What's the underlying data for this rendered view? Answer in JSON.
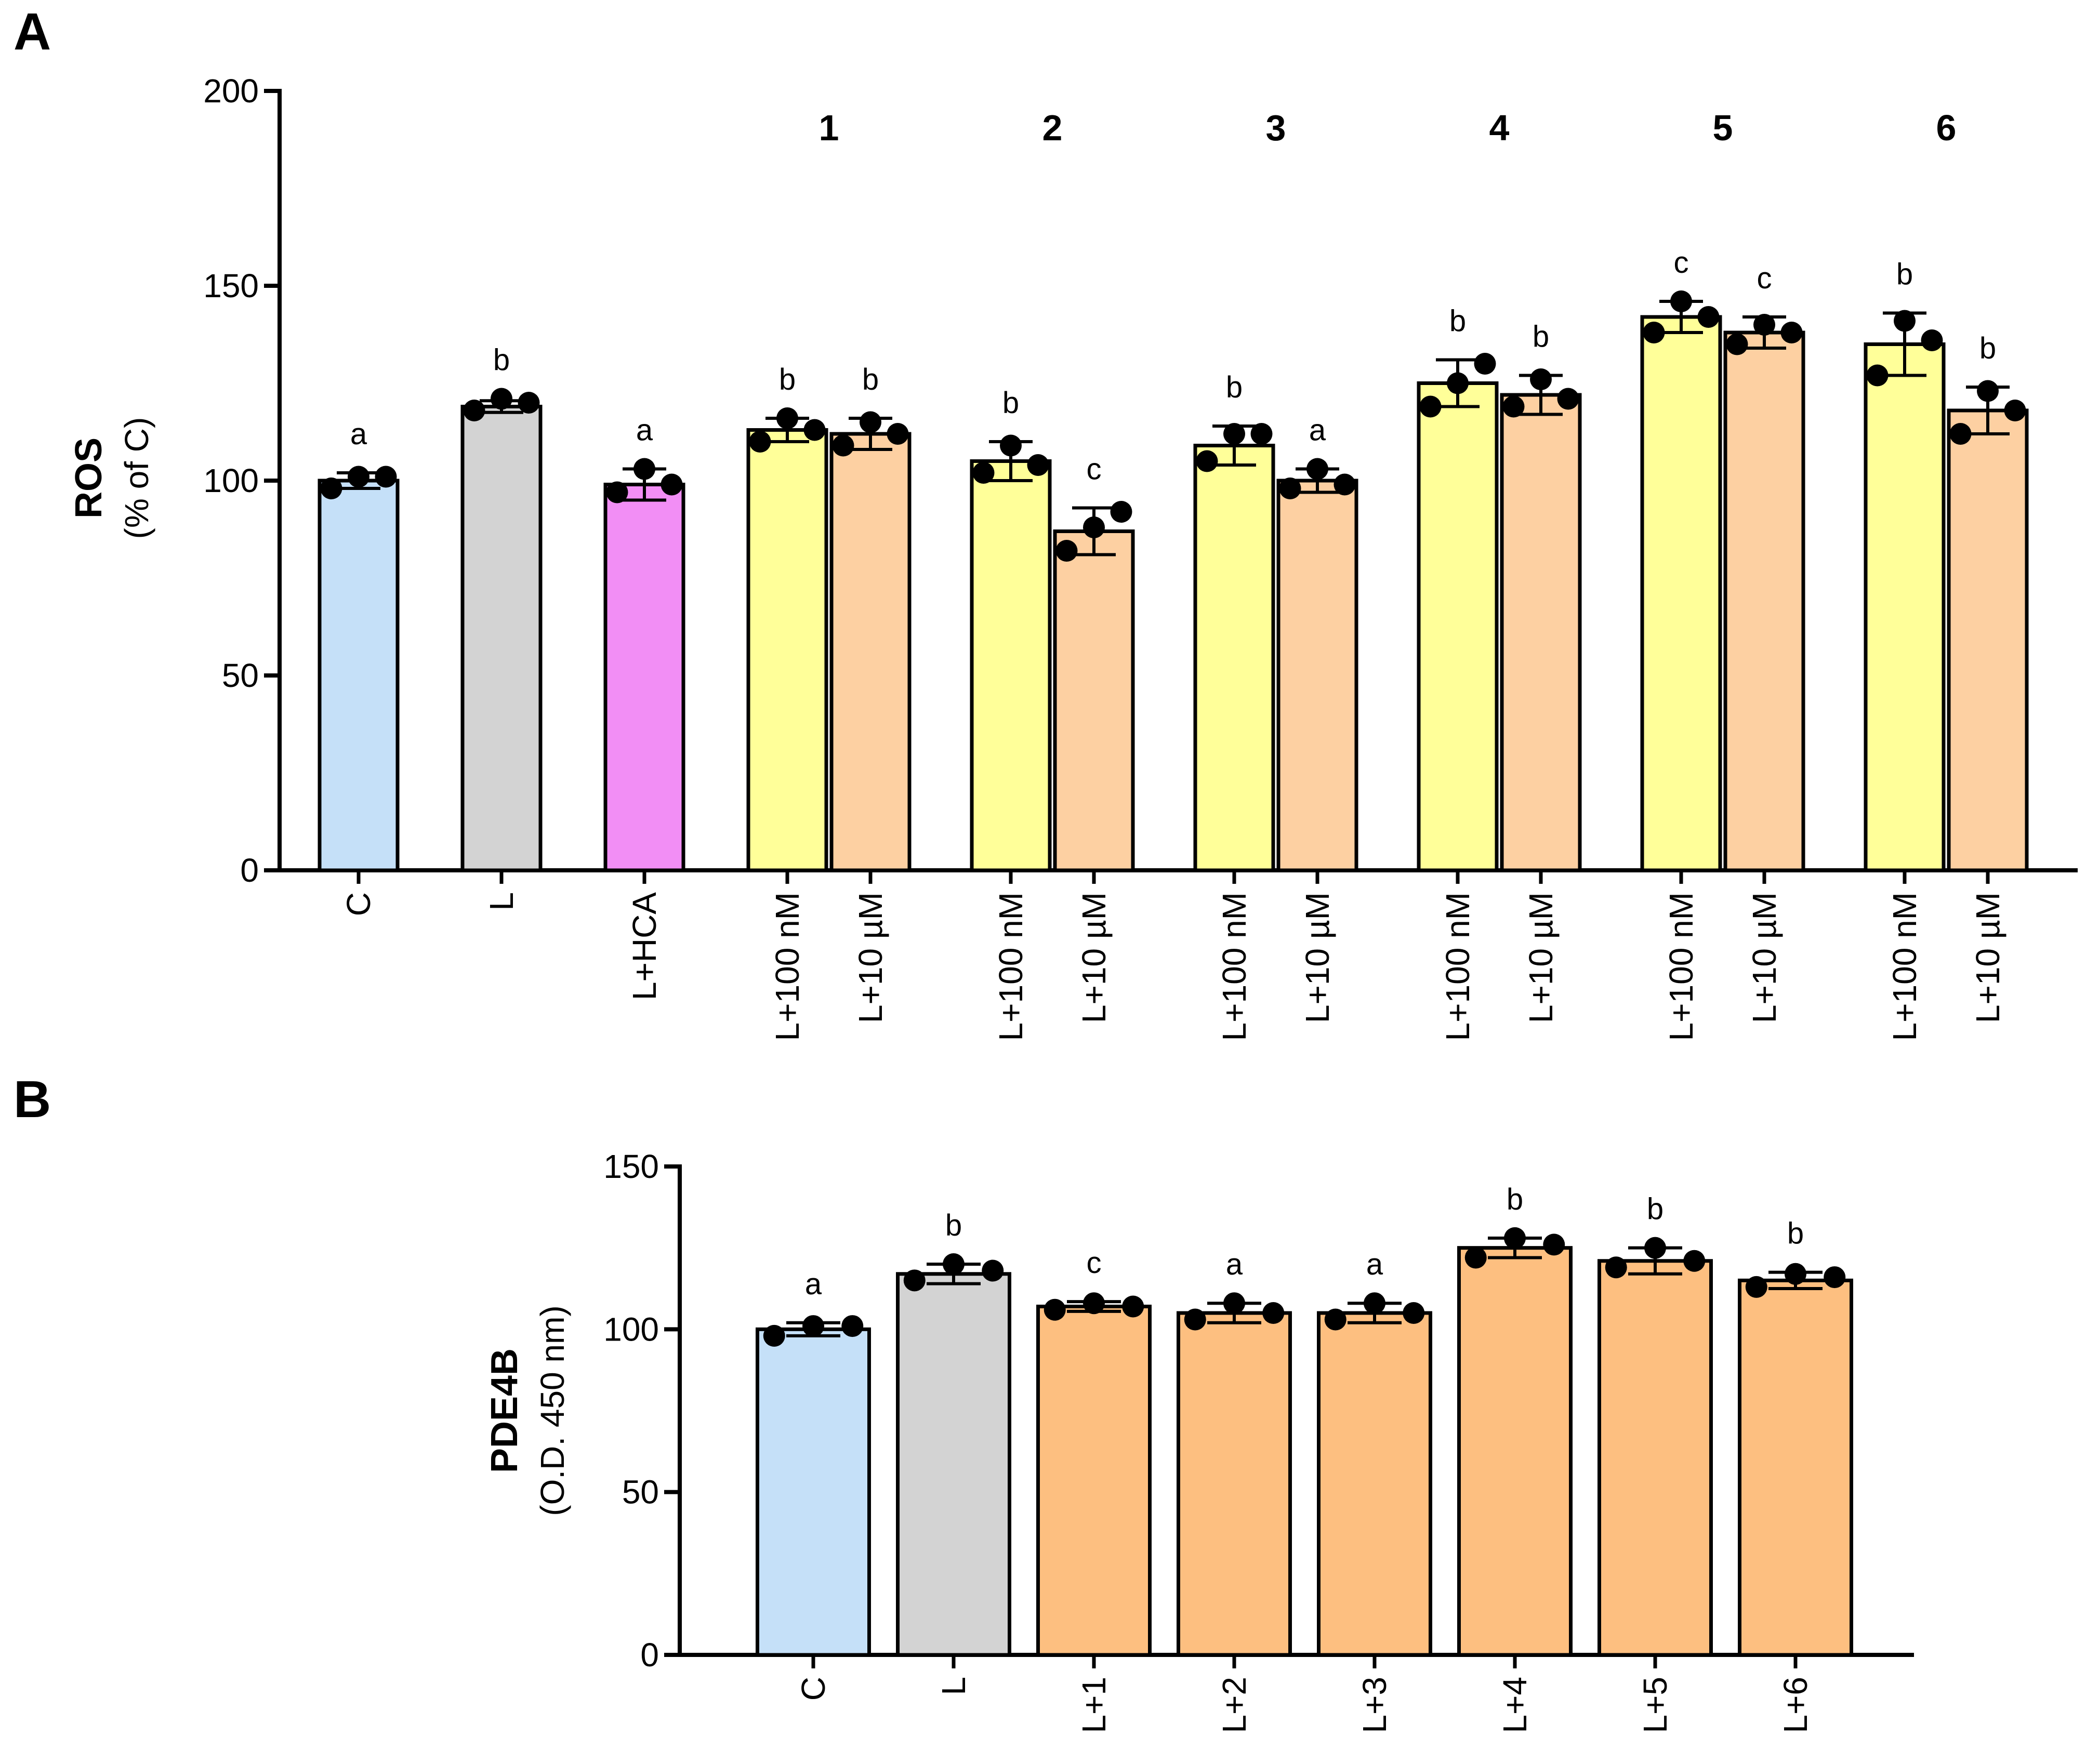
{
  "panels": {
    "a": {
      "label": "A"
    },
    "b": {
      "label": "B"
    }
  },
  "chart_data": [
    {
      "type": "bar",
      "panel": "A",
      "ylabel": "ROS",
      "ylabel_sub": "(% of C)",
      "xlabel": "",
      "ylim": [
        0,
        200
      ],
      "yticks": [
        0,
        50,
        100,
        150,
        200
      ],
      "group_labels": [
        {
          "text": "1",
          "bars": [
            3,
            4
          ]
        },
        {
          "text": "2",
          "bars": [
            5,
            6
          ]
        },
        {
          "text": "3",
          "bars": [
            7,
            8
          ]
        },
        {
          "text": "4",
          "bars": [
            9,
            10
          ]
        },
        {
          "text": "5",
          "bars": [
            11,
            12
          ]
        },
        {
          "text": "6",
          "bars": [
            13,
            14
          ]
        }
      ],
      "bars": [
        {
          "category": "C",
          "value": 100,
          "error": 2,
          "letter": "a",
          "color": "#c5e0f8",
          "points": [
            98,
            101,
            101
          ]
        },
        {
          "category": "L",
          "value": 119,
          "error": 1.5,
          "letter": "b",
          "color": "#d3d3d3",
          "points": [
            118,
            121,
            120
          ]
        },
        {
          "category": "L+HCA",
          "value": 99,
          "error": 4,
          "letter": "a",
          "color": "#f28ef5",
          "points": [
            97,
            103,
            99
          ]
        },
        {
          "category": "L+100 nM",
          "value": 113,
          "error": 3,
          "letter": "b",
          "color": "#ffff99",
          "points": [
            110,
            116,
            113
          ]
        },
        {
          "category": "L+10 µM",
          "value": 112,
          "error": 4,
          "letter": "b",
          "color": "#fdd0a2",
          "points": [
            109,
            115,
            112
          ]
        },
        {
          "category": "L+100 nM",
          "value": 105,
          "error": 5,
          "letter": "b",
          "color": "#ffff99",
          "points": [
            102,
            109,
            104
          ]
        },
        {
          "category": "L+10 µM",
          "value": 87,
          "error": 6,
          "letter": "c",
          "color": "#fdd0a2",
          "points": [
            82,
            88,
            92
          ]
        },
        {
          "category": "L+100 nM",
          "value": 109,
          "error": 5,
          "letter": "b",
          "color": "#ffff99",
          "points": [
            105,
            112,
            112
          ]
        },
        {
          "category": "L+10 µM",
          "value": 100,
          "error": 3,
          "letter": "a",
          "color": "#fdd0a2",
          "points": [
            98,
            103,
            99
          ]
        },
        {
          "category": "L+100 nM",
          "value": 125,
          "error": 6,
          "letter": "b",
          "color": "#ffff99",
          "points": [
            119,
            125,
            130
          ]
        },
        {
          "category": "L+10 µM",
          "value": 122,
          "error": 5,
          "letter": "b",
          "color": "#fdd0a2",
          "points": [
            119,
            126,
            121
          ]
        },
        {
          "category": "L+100 nM",
          "value": 142,
          "error": 4,
          "letter": "c",
          "color": "#ffff99",
          "points": [
            138,
            146,
            142
          ]
        },
        {
          "category": "L+10 µM",
          "value": 138,
          "error": 4,
          "letter": "c",
          "color": "#fdd0a2",
          "points": [
            135,
            140,
            138
          ]
        },
        {
          "category": "L+100 nM",
          "value": 135,
          "error": 8,
          "letter": "b",
          "color": "#ffff99",
          "points": [
            127,
            141,
            136
          ]
        },
        {
          "category": "L+10 µM",
          "value": 118,
          "error": 6,
          "letter": "b",
          "color": "#fdd0a2",
          "points": [
            112,
            123,
            118
          ]
        }
      ]
    },
    {
      "type": "bar",
      "panel": "B",
      "ylabel": "PDE4B",
      "ylabel_sub": "(O.D. 450 nm)",
      "xlabel": "",
      "ylim": [
        0,
        150
      ],
      "yticks": [
        0,
        50,
        100,
        150
      ],
      "bars": [
        {
          "category": "C",
          "value": 100,
          "error": 2,
          "letter": "a",
          "color": "#c5e0f8",
          "points": [
            98,
            101,
            101
          ]
        },
        {
          "category": "L",
          "value": 117,
          "error": 3,
          "letter": "b",
          "color": "#d3d3d3",
          "points": [
            115,
            120,
            118
          ]
        },
        {
          "category": "L+1",
          "value": 107,
          "error": 1.5,
          "letter": "c",
          "color": "#fdbf80",
          "points": [
            106,
            108,
            107
          ]
        },
        {
          "category": "L+2",
          "value": 105,
          "error": 3,
          "letter": "a",
          "color": "#fdbf80",
          "points": [
            103,
            108,
            105
          ]
        },
        {
          "category": "L+3",
          "value": 105,
          "error": 3,
          "letter": "a",
          "color": "#fdbf80",
          "points": [
            103,
            108,
            105
          ]
        },
        {
          "category": "L+4",
          "value": 125,
          "error": 3,
          "letter": "b",
          "color": "#fdbf80",
          "points": [
            122,
            128,
            126
          ]
        },
        {
          "category": "L+5",
          "value": 121,
          "error": 4,
          "letter": "b",
          "color": "#fdbf80",
          "points": [
            119,
            125,
            121
          ]
        },
        {
          "category": "L+6",
          "value": 115,
          "error": 2.5,
          "letter": "b",
          "color": "#fdbf80",
          "points": [
            113,
            117,
            116
          ]
        }
      ]
    }
  ]
}
